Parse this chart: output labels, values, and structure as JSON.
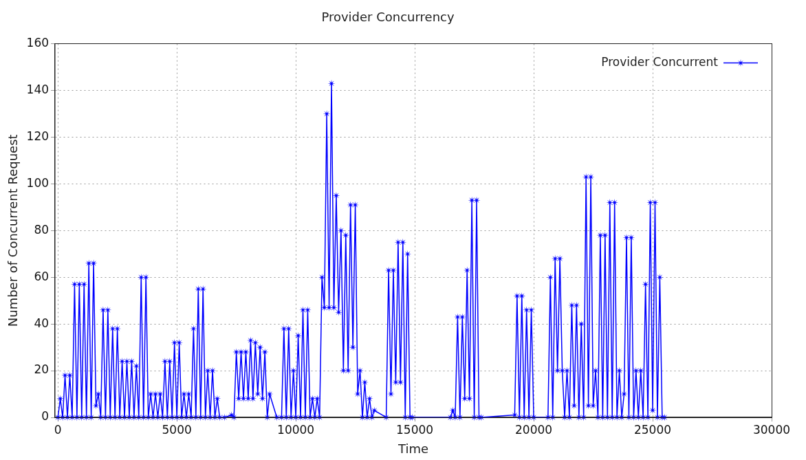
{
  "chart_data": {
    "type": "line",
    "title": "Provider Concurrency",
    "xlabel": "Time",
    "ylabel": "Number of Concurrent Request",
    "xlim": [
      -120,
      30000
    ],
    "xticks": [
      0,
      5000,
      10000,
      15000,
      20000,
      25000,
      30000
    ],
    "ylim": [
      0,
      160
    ],
    "yticks": [
      0,
      20,
      40,
      60,
      80,
      100,
      120,
      140,
      160
    ],
    "grid": true,
    "legend": "top right",
    "marker": "star",
    "line_style": "solid",
    "series": [
      {
        "name": "Provider Concurrent",
        "color": "#0000ff",
        "x": [
          0,
          100,
          200,
          300,
          400,
          500,
          600,
          700,
          800,
          900,
          1000,
          1100,
          1200,
          1300,
          1400,
          1500,
          1600,
          1700,
          1800,
          1900,
          2000,
          2100,
          2200,
          2300,
          2400,
          2500,
          2600,
          2700,
          2800,
          2900,
          3000,
          3100,
          3200,
          3300,
          3400,
          3500,
          3600,
          3700,
          3800,
          3900,
          4000,
          4100,
          4200,
          4300,
          4400,
          4500,
          4600,
          4700,
          4800,
          4900,
          5000,
          5100,
          5200,
          5300,
          5400,
          5500,
          5600,
          5700,
          5800,
          5900,
          6000,
          6100,
          6200,
          6300,
          6400,
          6500,
          6600,
          6700,
          6800,
          7000,
          7300,
          7400,
          7500,
          7600,
          7700,
          7800,
          7900,
          8000,
          8100,
          8200,
          8300,
          8400,
          8500,
          8600,
          8700,
          8800,
          8900,
          9200,
          9400,
          9500,
          9600,
          9700,
          9800,
          9900,
          10000,
          10100,
          10200,
          10300,
          10400,
          10500,
          10600,
          10700,
          10800,
          10900,
          11000,
          11100,
          11200,
          11300,
          11400,
          11500,
          11600,
          11700,
          11800,
          11900,
          12000,
          12100,
          12200,
          12300,
          12400,
          12500,
          12600,
          12700,
          12800,
          12900,
          13000,
          13100,
          13200,
          13300,
          13800,
          13900,
          14000,
          14100,
          14200,
          14300,
          14400,
          14500,
          14600,
          14700,
          14800,
          14900,
          16500,
          16600,
          16700,
          16800,
          16900,
          17000,
          17100,
          17200,
          17300,
          17400,
          17500,
          17600,
          17700,
          17800,
          19200,
          19300,
          19400,
          19500,
          19600,
          19700,
          19800,
          19900,
          20000,
          20600,
          20700,
          20800,
          20900,
          21000,
          21100,
          21200,
          21300,
          21400,
          21500,
          21600,
          21700,
          21800,
          21900,
          22000,
          22100,
          22200,
          22300,
          22400,
          22500,
          22600,
          22700,
          22800,
          22900,
          23000,
          23100,
          23200,
          23300,
          23400,
          23500,
          23600,
          23700,
          23800,
          23900,
          24000,
          24100,
          24200,
          24300,
          24400,
          24500,
          24600,
          24700,
          24800,
          24900,
          25000,
          25100,
          25200,
          25300,
          25400,
          25500
        ],
        "values": [
          0,
          8,
          0,
          18,
          0,
          18,
          0,
          57,
          0,
          57,
          0,
          57,
          0,
          66,
          0,
          66,
          5,
          10,
          0,
          46,
          0,
          46,
          0,
          38,
          0,
          38,
          0,
          24,
          0,
          24,
          0,
          24,
          0,
          22,
          0,
          60,
          0,
          60,
          0,
          10,
          0,
          10,
          0,
          10,
          0,
          24,
          0,
          24,
          0,
          32,
          0,
          32,
          0,
          10,
          0,
          10,
          0,
          38,
          0,
          55,
          0,
          55,
          0,
          20,
          0,
          20,
          0,
          8,
          0,
          0,
          1,
          0,
          28,
          8,
          28,
          8,
          28,
          8,
          33,
          8,
          32,
          10,
          30,
          8,
          28,
          0,
          10,
          0,
          0,
          38,
          0,
          38,
          0,
          20,
          0,
          35,
          0,
          46,
          0,
          46,
          0,
          8,
          0,
          8,
          0,
          60,
          47,
          130,
          47,
          143,
          47,
          95,
          45,
          80,
          20,
          78,
          20,
          91,
          30,
          91,
          10,
          20,
          0,
          15,
          0,
          8,
          0,
          3,
          0,
          63,
          10,
          63,
          15,
          75,
          15,
          75,
          0,
          70,
          0,
          0,
          0,
          3,
          0,
          43,
          0,
          43,
          8,
          63,
          8,
          93,
          0,
          93,
          0,
          0,
          1,
          52,
          0,
          52,
          0,
          46,
          0,
          46,
          0,
          0,
          60,
          0,
          68,
          20,
          68,
          20,
          0,
          20,
          0,
          48,
          5,
          48,
          0,
          40,
          0,
          103,
          5,
          103,
          5,
          20,
          0,
          78,
          0,
          78,
          0,
          92,
          0,
          92,
          0,
          20,
          0,
          10,
          77,
          0,
          77,
          0,
          20,
          0,
          20,
          0,
          57,
          0,
          92,
          3,
          92,
          0,
          60,
          0,
          0
        ]
      }
    ]
  }
}
